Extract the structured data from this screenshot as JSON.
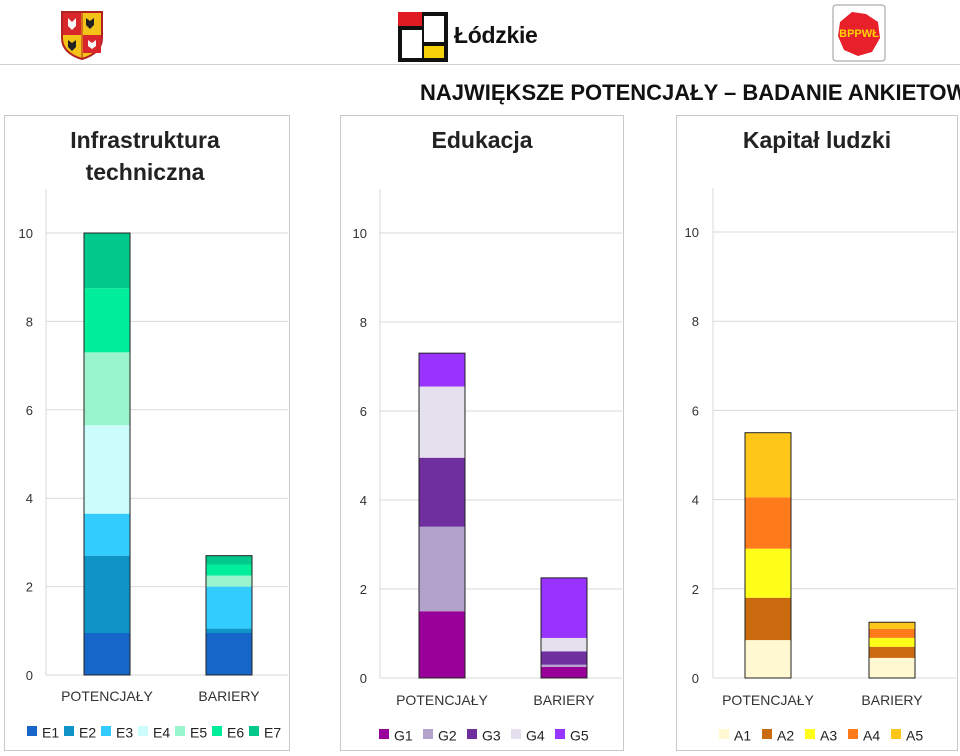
{
  "header": {
    "region_name": "Łódzkie",
    "right_logo_text": "BPPWŁ",
    "main_title": "NAJWIĘKSZE POTENCJAŁY – BADANIE ANKIETOWE"
  },
  "chart_data": [
    {
      "type": "bar",
      "stacked": true,
      "title": "Infrastruktura techniczna",
      "categories": [
        "POTENCJAŁY",
        "BARIERY"
      ],
      "ylim": [
        0,
        10
      ],
      "yticks": [
        0,
        2,
        4,
        6,
        8,
        10
      ],
      "grid": true,
      "legend_position": "bottom",
      "series": [
        {
          "name": "E1",
          "color": "#1566c8",
          "values": [
            0.95,
            0.95
          ]
        },
        {
          "name": "E2",
          "color": "#0f94c8",
          "values": [
            1.75,
            0.1
          ]
        },
        {
          "name": "E3",
          "color": "#33ccff",
          "values": [
            0.95,
            0.95
          ]
        },
        {
          "name": "E4",
          "color": "#cdfcfc",
          "values": [
            2.0,
            0.0
          ]
        },
        {
          "name": "E5",
          "color": "#99f5cc",
          "values": [
            1.65,
            0.25
          ]
        },
        {
          "name": "E6",
          "color": "#00ee99",
          "values": [
            1.45,
            0.25
          ]
        },
        {
          "name": "E7",
          "color": "#00c98b",
          "values": [
            1.25,
            0.2
          ]
        }
      ]
    },
    {
      "type": "bar",
      "stacked": true,
      "title": "Edukacja",
      "categories": [
        "POTENCJAŁY",
        "BARIERY"
      ],
      "ylim": [
        0,
        10
      ],
      "yticks": [
        0,
        2,
        4,
        6,
        8,
        10
      ],
      "grid": true,
      "legend_position": "bottom",
      "series": [
        {
          "name": "G1",
          "color": "#990099",
          "values": [
            1.5,
            0.25
          ]
        },
        {
          "name": "G2",
          "color": "#b3a2cc",
          "values": [
            1.9,
            0.05
          ]
        },
        {
          "name": "G3",
          "color": "#6f2f9f",
          "values": [
            1.55,
            0.3
          ]
        },
        {
          "name": "G4",
          "color": "#e4e0ee",
          "values": [
            1.6,
            0.3
          ]
        },
        {
          "name": "G5",
          "color": "#9933ff",
          "values": [
            0.75,
            1.35
          ]
        }
      ]
    },
    {
      "type": "bar",
      "stacked": true,
      "title": "Kapitał ludzki",
      "categories": [
        "POTENCJAŁY",
        "BARIERY"
      ],
      "ylim": [
        0,
        10
      ],
      "yticks": [
        0,
        2,
        4,
        6,
        8,
        10
      ],
      "grid": true,
      "legend_position": "bottom",
      "series": [
        {
          "name": "A1",
          "color": "#fff8d0",
          "values": [
            0.85,
            0.45
          ]
        },
        {
          "name": "A2",
          "color": "#cc6a10",
          "values": [
            0.95,
            0.25
          ]
        },
        {
          "name": "A3",
          "color": "#ffff1a",
          "values": [
            1.1,
            0.2
          ]
        },
        {
          "name": "A4",
          "color": "#ff7a1a",
          "values": [
            1.15,
            0.2
          ]
        },
        {
          "name": "A5",
          "color": "#ffc61a",
          "values": [
            1.45,
            0.15
          ]
        }
      ]
    }
  ]
}
